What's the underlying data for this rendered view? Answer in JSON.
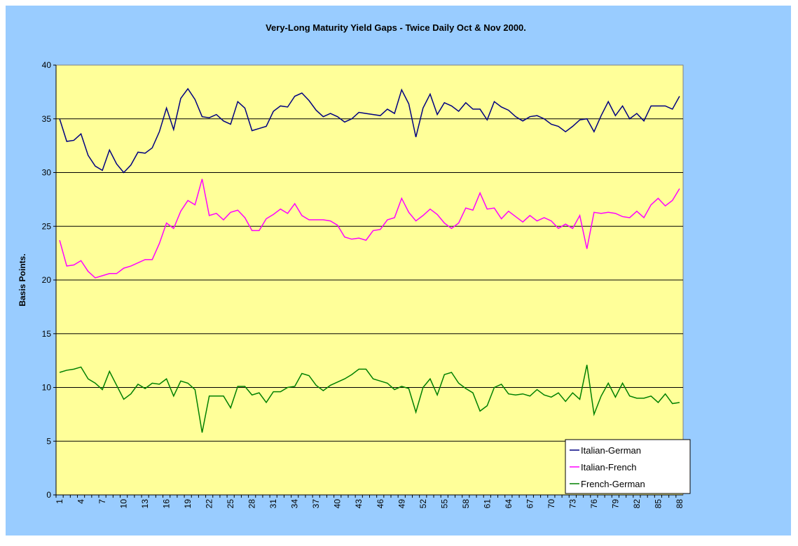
{
  "chart_data": {
    "type": "line",
    "title": "Very-Long Maturity Yield Gaps - Twice Daily Oct & Nov 2000.",
    "y_label": "Basis Points.",
    "categories": [
      1,
      null,
      null,
      4,
      null,
      null,
      7,
      null,
      null,
      10,
      null,
      null,
      13,
      null,
      null,
      16,
      null,
      null,
      19,
      null,
      null,
      22,
      null,
      null,
      25,
      null,
      null,
      28,
      null,
      null,
      31,
      null,
      null,
      34,
      null,
      null,
      37,
      null,
      null,
      40,
      null,
      null,
      43,
      null,
      null,
      46,
      null,
      null,
      49,
      null,
      null,
      52,
      null,
      null,
      55,
      null,
      null,
      58,
      null,
      null,
      61,
      null,
      null,
      64,
      null,
      null,
      67,
      null,
      null,
      70,
      null,
      null,
      73,
      null,
      null,
      76,
      null,
      null,
      79,
      null,
      null,
      82,
      null,
      null,
      85,
      null,
      null,
      88
    ],
    "series": [
      {
        "name": "Italian-German",
        "color": "#000080",
        "values": [
          35.0,
          32.9,
          33.0,
          33.6,
          31.6,
          30.6,
          30.2,
          32.1,
          30.8,
          30.0,
          30.7,
          31.9,
          31.8,
          32.3,
          33.8,
          36.0,
          34.0,
          36.9,
          37.8,
          36.8,
          35.2,
          35.1,
          35.4,
          34.8,
          34.5,
          36.6,
          36.0,
          33.9,
          34.1,
          34.3,
          35.7,
          36.2,
          36.1,
          37.1,
          37.4,
          36.7,
          35.8,
          35.2,
          35.5,
          35.2,
          34.7,
          35.0,
          35.6,
          35.5,
          35.4,
          35.3,
          35.9,
          35.5,
          37.7,
          36.4,
          33.3,
          36.0,
          37.3,
          35.4,
          36.5,
          36.2,
          35.7,
          36.5,
          35.9,
          35.9,
          34.9,
          36.6,
          36.1,
          35.8,
          35.2,
          34.8,
          35.2,
          35.3,
          35.0,
          34.5,
          34.3,
          33.8,
          34.3,
          34.9,
          35.0,
          33.8,
          35.3,
          36.6,
          35.3,
          36.2,
          35.0,
          35.5,
          34.8,
          36.2,
          36.2,
          36.2,
          35.9,
          37.1
        ]
      },
      {
        "name": "Italian-French",
        "color": "#ff00ff",
        "values": [
          23.7,
          21.3,
          21.4,
          21.8,
          20.8,
          20.2,
          20.4,
          20.6,
          20.6,
          21.1,
          21.3,
          21.6,
          21.9,
          21.9,
          23.4,
          25.3,
          24.8,
          26.4,
          27.4,
          27.0,
          29.4,
          26.0,
          26.2,
          25.6,
          26.3,
          26.5,
          25.8,
          24.6,
          24.6,
          25.7,
          26.1,
          26.6,
          26.2,
          27.1,
          26.0,
          25.6,
          25.6,
          25.6,
          25.5,
          25.1,
          24.0,
          23.8,
          23.9,
          23.7,
          24.6,
          24.7,
          25.6,
          25.8,
          27.6,
          26.3,
          25.5,
          26.0,
          26.6,
          26.1,
          25.3,
          24.8,
          25.3,
          26.7,
          26.5,
          28.1,
          26.6,
          26.7,
          25.7,
          26.4,
          25.9,
          25.4,
          26.0,
          25.5,
          25.8,
          25.5,
          24.8,
          25.2,
          24.8,
          26.0,
          22.9,
          26.3,
          26.2,
          26.3,
          26.2,
          25.9,
          25.8,
          26.4,
          25.8,
          27.0,
          27.6,
          26.9,
          27.4,
          28.5
        ]
      },
      {
        "name": "French-German",
        "color": "#008000",
        "values": [
          11.4,
          11.6,
          11.7,
          11.9,
          10.8,
          10.4,
          9.8,
          11.5,
          10.2,
          8.9,
          9.4,
          10.3,
          9.9,
          10.4,
          10.3,
          10.8,
          9.2,
          10.6,
          10.4,
          9.8,
          5.8,
          9.2,
          9.2,
          9.2,
          8.1,
          10.1,
          10.1,
          9.3,
          9.5,
          8.6,
          9.6,
          9.6,
          10.0,
          10.1,
          11.3,
          11.1,
          10.2,
          9.7,
          10.2,
          10.5,
          10.8,
          11.2,
          11.7,
          11.7,
          10.8,
          10.6,
          10.4,
          9.8,
          10.1,
          9.9,
          7.7,
          10.0,
          10.8,
          9.3,
          11.2,
          11.4,
          10.4,
          9.9,
          9.5,
          7.8,
          8.3,
          10.0,
          10.3,
          9.4,
          9.3,
          9.4,
          9.2,
          9.8,
          9.3,
          9.1,
          9.5,
          8.7,
          9.5,
          8.9,
          12.1,
          7.5,
          9.2,
          10.4,
          9.1,
          10.4,
          9.2,
          9.0,
          9.0,
          9.2,
          8.6,
          9.4,
          8.5,
          8.6
        ]
      }
    ],
    "ylim": [
      0,
      40
    ],
    "yticks": [
      0,
      5,
      10,
      15,
      20,
      25,
      30,
      35,
      40
    ],
    "grid": true,
    "legend": "bottom-right",
    "plot_color": "#ffff99",
    "background": "#99ccff"
  }
}
